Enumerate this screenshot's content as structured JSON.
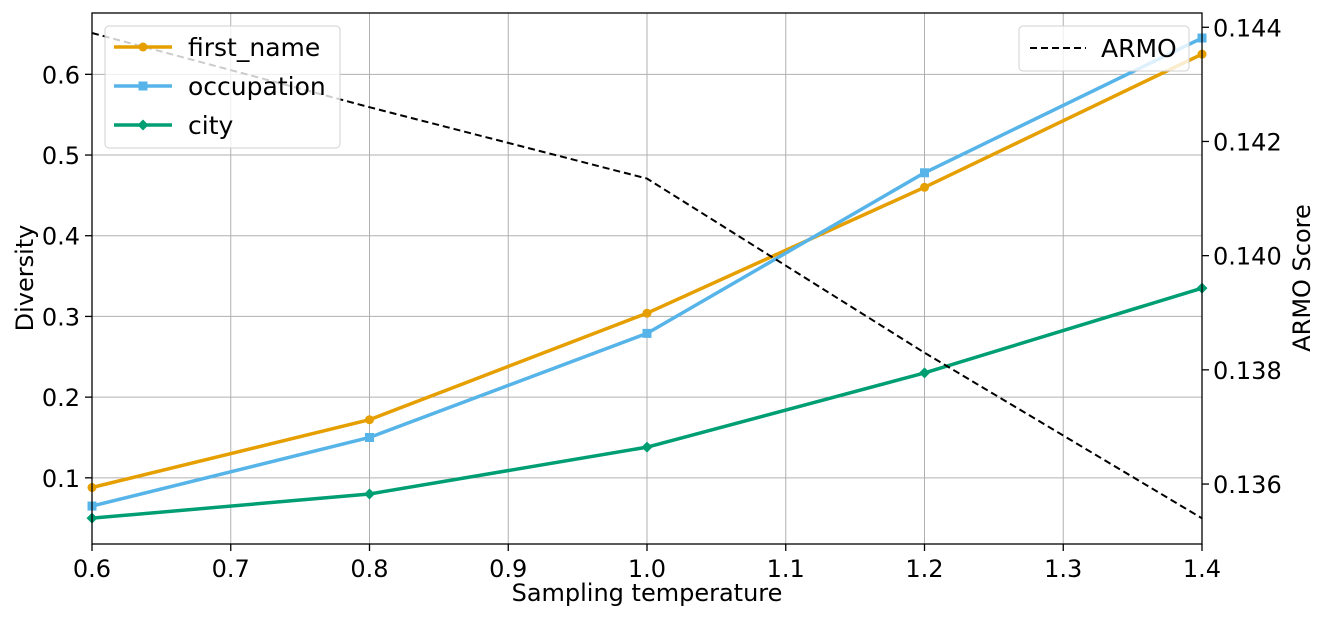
{
  "chart_data": {
    "type": "line",
    "xlabel": "Sampling temperature",
    "ylabel": "Diversity",
    "y2label": "ARMO Score",
    "xlim": [
      0.6,
      1.4
    ],
    "ylim": [
      0.018,
      0.676
    ],
    "y2lim": [
      0.13495,
      0.14425
    ],
    "grid": true,
    "xticks": [
      "0.6",
      "0.7",
      "0.8",
      "0.9",
      "1.0",
      "1.1",
      "1.2",
      "1.3",
      "1.4"
    ],
    "yticks": [
      "0.1",
      "0.2",
      "0.3",
      "0.4",
      "0.5",
      "0.6"
    ],
    "y2ticks": [
      "0.136",
      "0.138",
      "0.140",
      "0.142",
      "0.144"
    ],
    "x": [
      0.6,
      0.8,
      1.0,
      1.2,
      1.4
    ],
    "series": [
      {
        "name": "first_name",
        "axis": "left",
        "color": "#E69F00",
        "marker": "circle",
        "values": [
          0.088,
          0.172,
          0.304,
          0.46,
          0.625
        ]
      },
      {
        "name": "occupation",
        "axis": "left",
        "color": "#56B4E9",
        "marker": "square",
        "values": [
          0.065,
          0.15,
          0.279,
          0.478,
          0.645
        ]
      },
      {
        "name": "city",
        "axis": "left",
        "color": "#009E73",
        "marker": "diamond",
        "values": [
          0.05,
          0.08,
          0.138,
          0.23,
          0.335
        ]
      },
      {
        "name": "ARMO",
        "axis": "right",
        "color": "#000000",
        "marker": "none",
        "dashed": true,
        "values": [
          0.1439,
          0.1426,
          0.14135,
          0.1383,
          0.1354
        ]
      }
    ],
    "legend_left": {
      "placement": "top-left",
      "entries": [
        "first_name",
        "occupation",
        "city"
      ]
    },
    "legend_right": {
      "placement": "top-right",
      "entries": [
        "ARMO"
      ]
    }
  }
}
